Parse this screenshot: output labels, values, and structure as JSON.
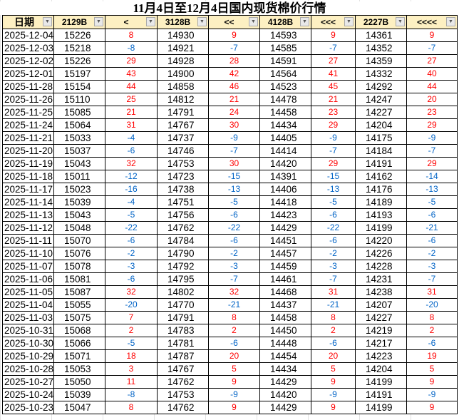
{
  "title": "11月4日至12月4日国内现货棉价行情",
  "colors": {
    "up": "#ff0000",
    "down": "#0063c6",
    "header_bg": "#fdf0c2"
  },
  "columns": [
    "日期",
    "2129B",
    "<",
    "3128B",
    "<<",
    "4128B",
    "<<<",
    "2227B",
    "<<<<"
  ],
  "rows": [
    [
      "2025-12-04",
      "15226",
      "8",
      "14930",
      "9",
      "14593",
      "9",
      "14361",
      "9"
    ],
    [
      "2025-12-03",
      "15218",
      "-8",
      "14921",
      "-7",
      "14585",
      "-7",
      "14352",
      "-7"
    ],
    [
      "2025-12-02",
      "15226",
      "29",
      "14928",
      "28",
      "14591",
      "27",
      "14359",
      "27"
    ],
    [
      "2025-12-01",
      "15197",
      "43",
      "14900",
      "42",
      "14564",
      "41",
      "14332",
      "40"
    ],
    [
      "2025-11-28",
      "15154",
      "44",
      "14858",
      "46",
      "14523",
      "45",
      "14292",
      "44"
    ],
    [
      "2025-11-26",
      "15110",
      "25",
      "14812",
      "21",
      "14478",
      "21",
      "14247",
      "20"
    ],
    [
      "2025-11-25",
      "15085",
      "21",
      "14791",
      "24",
      "14458",
      "23",
      "14227",
      "23"
    ],
    [
      "2025-11-24",
      "15064",
      "31",
      "14767",
      "30",
      "14434",
      "29",
      "14204",
      "29"
    ],
    [
      "2025-11-21",
      "15033",
      "-4",
      "14737",
      "-9",
      "14405",
      "-9",
      "14175",
      "-9"
    ],
    [
      "2025-11-20",
      "15037",
      "-6",
      "14746",
      "-7",
      "14414",
      "-7",
      "14184",
      "-7"
    ],
    [
      "2025-11-19",
      "15043",
      "32",
      "14753",
      "30",
      "14420",
      "29",
      "14191",
      "29"
    ],
    [
      "2025-11-18",
      "15011",
      "-12",
      "14723",
      "-15",
      "14391",
      "-15",
      "14162",
      "-14"
    ],
    [
      "2025-11-17",
      "15023",
      "-16",
      "14738",
      "-13",
      "14406",
      "-13",
      "14176",
      "-13"
    ],
    [
      "2025-11-14",
      "15039",
      "-4",
      "14751",
      "-5",
      "14418",
      "-5",
      "14189",
      "-5"
    ],
    [
      "2025-11-13",
      "15043",
      "-5",
      "14756",
      "-6",
      "14423",
      "-6",
      "14193",
      "-6"
    ],
    [
      "2025-11-12",
      "15048",
      "-22",
      "14762",
      "-22",
      "14429",
      "-22",
      "14199",
      "-21"
    ],
    [
      "2025-11-11",
      "15070",
      "-6",
      "14784",
      "-6",
      "14451",
      "-6",
      "14220",
      "-6"
    ],
    [
      "2025-11-10",
      "15076",
      "-2",
      "14790",
      "-2",
      "14457",
      "-2",
      "14226",
      "-2"
    ],
    [
      "2025-11-07",
      "15078",
      "-3",
      "14792",
      "-3",
      "14459",
      "-3",
      "14228",
      "-3"
    ],
    [
      "2025-11-06",
      "15081",
      "-6",
      "14795",
      "-7",
      "14461",
      "-7",
      "14231",
      "-7"
    ],
    [
      "2025-11-05",
      "15087",
      "32",
      "14802",
      "32",
      "14468",
      "31",
      "14238",
      "31"
    ],
    [
      "2025-11-04",
      "15055",
      "-20",
      "14770",
      "-21",
      "14437",
      "-21",
      "14207",
      "-20"
    ],
    [
      "2025-11-03",
      "15075",
      "7",
      "14791",
      "8",
      "14458",
      "8",
      "14227",
      "8"
    ],
    [
      "2025-10-31",
      "15068",
      "2",
      "14783",
      "2",
      "14450",
      "2",
      "14219",
      "2"
    ],
    [
      "2025-10-30",
      "15066",
      "-5",
      "14781",
      "-6",
      "14448",
      "-6",
      "14217",
      "-6"
    ],
    [
      "2025-10-29",
      "15071",
      "18",
      "14787",
      "20",
      "14454",
      "20",
      "14223",
      "19"
    ],
    [
      "2025-10-28",
      "15053",
      "3",
      "14767",
      "5",
      "14434",
      "5",
      "14204",
      "5"
    ],
    [
      "2025-10-27",
      "15050",
      "11",
      "14762",
      "9",
      "14429",
      "9",
      "14199",
      "9"
    ],
    [
      "2025-10-24",
      "15039",
      "-8",
      "14753",
      "-9",
      "14420",
      "-9",
      "14191",
      "-9"
    ],
    [
      "2025-10-23",
      "15047",
      "8",
      "14762",
      "9",
      "14429",
      "9",
      "14199",
      "9"
    ]
  ]
}
